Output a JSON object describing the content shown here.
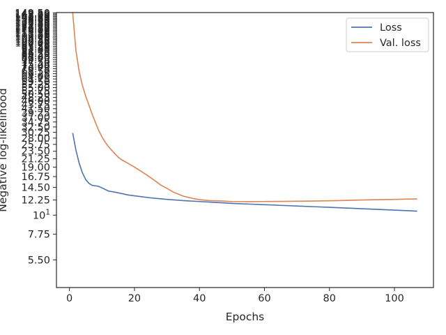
{
  "chart_data": {
    "type": "line",
    "title": "",
    "xlabel": "Epochs",
    "ylabel": "Negative log-likelihood",
    "xlim": [
      -4,
      112
    ],
    "x_ticks": [
      0,
      20,
      40,
      60,
      80,
      100
    ],
    "x_tick_labels": [
      "0",
      "20",
      "40",
      "60",
      "80",
      "100"
    ],
    "y_scale": "log",
    "ylim": [
      3.8,
      150
    ],
    "y_ticks": [
      {
        "value": 5.5,
        "label": "5.50"
      },
      {
        "value": 7.75,
        "label": "7.75"
      },
      {
        "value": 10,
        "label": "10¹"
      },
      {
        "value": 12.25,
        "label": "12.25"
      },
      {
        "value": 14.5,
        "label": "14.50"
      },
      {
        "value": 16.75,
        "label": "16.75"
      },
      {
        "value": 19.0,
        "label": "19.00"
      },
      {
        "value": 21.25,
        "label": "21.25"
      },
      {
        "value": 23.5,
        "label": "23.50"
      },
      {
        "value": 25.75,
        "label": "25.75"
      },
      {
        "value": 28.0,
        "label": "28.00"
      },
      {
        "value": 30.25,
        "label": "30.25"
      },
      {
        "value": 32.5,
        "label": "32.50"
      },
      {
        "value": 34.75,
        "label": "34.75"
      },
      {
        "value": 37.0,
        "label": "37.00"
      },
      {
        "value": 39.25,
        "label": "39.25"
      },
      {
        "value": 41.5,
        "label": "41.50"
      },
      {
        "value": 43.75,
        "label": "43.75"
      },
      {
        "value": 46.0,
        "label": "46.00"
      },
      {
        "value": 48.25,
        "label": "48.25"
      },
      {
        "value": 50.5,
        "label": "50.50"
      },
      {
        "value": 52.75,
        "label": "52.75"
      },
      {
        "value": 55.0,
        "label": "55.00"
      },
      {
        "value": 57.25,
        "label": "57.25"
      },
      {
        "value": 59.5,
        "label": "59.50"
      },
      {
        "value": 61.75,
        "label": "61.75"
      },
      {
        "value": 64.0,
        "label": "64.00"
      },
      {
        "value": 66.25,
        "label": "66.25"
      },
      {
        "value": 68.5,
        "label": "68.50"
      },
      {
        "value": 70.75,
        "label": "70.75"
      },
      {
        "value": 73.0,
        "label": "73.00"
      },
      {
        "value": 75.25,
        "label": "75.25"
      },
      {
        "value": 77.5,
        "label": "77.50"
      },
      {
        "value": 79.75,
        "label": "79.75"
      },
      {
        "value": 82.0,
        "label": "82.00"
      },
      {
        "value": 84.25,
        "label": "84.25"
      },
      {
        "value": 86.5,
        "label": "86.50"
      },
      {
        "value": 88.75,
        "label": "88.75"
      },
      {
        "value": 91.0,
        "label": "91.00"
      },
      {
        "value": 93.25,
        "label": "93.25"
      },
      {
        "value": 95.5,
        "label": "95.50"
      },
      {
        "value": 97.75,
        "label": "97.75"
      },
      {
        "value": 100.0,
        "label": "100.00"
      },
      {
        "value": 102.25,
        "label": "102.25"
      },
      {
        "value": 104.5,
        "label": "104.50"
      },
      {
        "value": 106.75,
        "label": "106.75"
      },
      {
        "value": 109.0,
        "label": "109.00"
      },
      {
        "value": 111.25,
        "label": "111.25"
      },
      {
        "value": 113.5,
        "label": "113.50"
      },
      {
        "value": 115.75,
        "label": "115.75"
      },
      {
        "value": 118.0,
        "label": "118.00"
      },
      {
        "value": 120.25,
        "label": "120.25"
      },
      {
        "value": 122.5,
        "label": "122.50"
      },
      {
        "value": 124.75,
        "label": "124.75"
      },
      {
        "value": 127.0,
        "label": "127.00"
      },
      {
        "value": 129.25,
        "label": "129.25"
      },
      {
        "value": 131.5,
        "label": "131.50"
      },
      {
        "value": 133.75,
        "label": "133.75"
      },
      {
        "value": 136.0,
        "label": "136.00"
      },
      {
        "value": 138.25,
        "label": "138.25"
      },
      {
        "value": 140.5,
        "label": "140.50"
      },
      {
        "value": 142.75,
        "label": "142.75"
      },
      {
        "value": 145.0,
        "label": "145.00"
      },
      {
        "value": 147.25,
        "label": "147.25"
      },
      {
        "value": 149.5,
        "label": "149.50"
      }
    ],
    "legend_position": "top-right",
    "grid": false,
    "series": [
      {
        "name": "Loss",
        "color": "#4c72b0",
        "x": [
          1,
          2,
          3,
          4,
          5,
          6,
          7,
          8,
          9,
          10,
          11,
          12,
          14,
          16,
          18,
          20,
          25,
          30,
          35,
          40,
          45,
          50,
          55,
          60,
          65,
          70,
          75,
          80,
          85,
          90,
          95,
          100,
          105,
          107
        ],
        "y": [
          30.0,
          23.8,
          20.0,
          17.6,
          16.1,
          15.3,
          14.9,
          14.8,
          14.7,
          14.4,
          14.1,
          13.8,
          13.6,
          13.35,
          13.1,
          12.95,
          12.6,
          12.35,
          12.15,
          12.0,
          11.85,
          11.7,
          11.6,
          11.5,
          11.4,
          11.3,
          11.2,
          11.1,
          11.0,
          10.9,
          10.8,
          10.7,
          10.6,
          10.55
        ]
      },
      {
        "name": "Val. loss",
        "color": "#dd8452",
        "x": [
          1,
          2,
          3,
          4,
          5,
          6,
          7,
          8,
          9,
          10,
          11,
          12,
          13,
          14,
          15,
          16,
          18,
          20,
          22,
          24,
          26,
          28,
          30,
          32,
          35,
          38,
          40,
          43,
          46,
          48,
          50,
          55,
          60,
          65,
          70,
          75,
          80,
          85,
          90,
          95,
          100,
          105,
          107
        ],
        "y": [
          150.0,
          90.0,
          68.0,
          56.5,
          49.0,
          43.5,
          38.5,
          34.5,
          31.0,
          28.5,
          26.5,
          25.0,
          23.8,
          22.7,
          21.7,
          21.0,
          20.0,
          19.0,
          18.0,
          17.0,
          16.0,
          15.0,
          14.3,
          13.6,
          12.9,
          12.5,
          12.3,
          12.15,
          12.1,
          12.05,
          12.0,
          11.98,
          12.0,
          12.02,
          12.05,
          12.08,
          12.12,
          12.18,
          12.25,
          12.3,
          12.35,
          12.4,
          12.42
        ]
      }
    ]
  }
}
